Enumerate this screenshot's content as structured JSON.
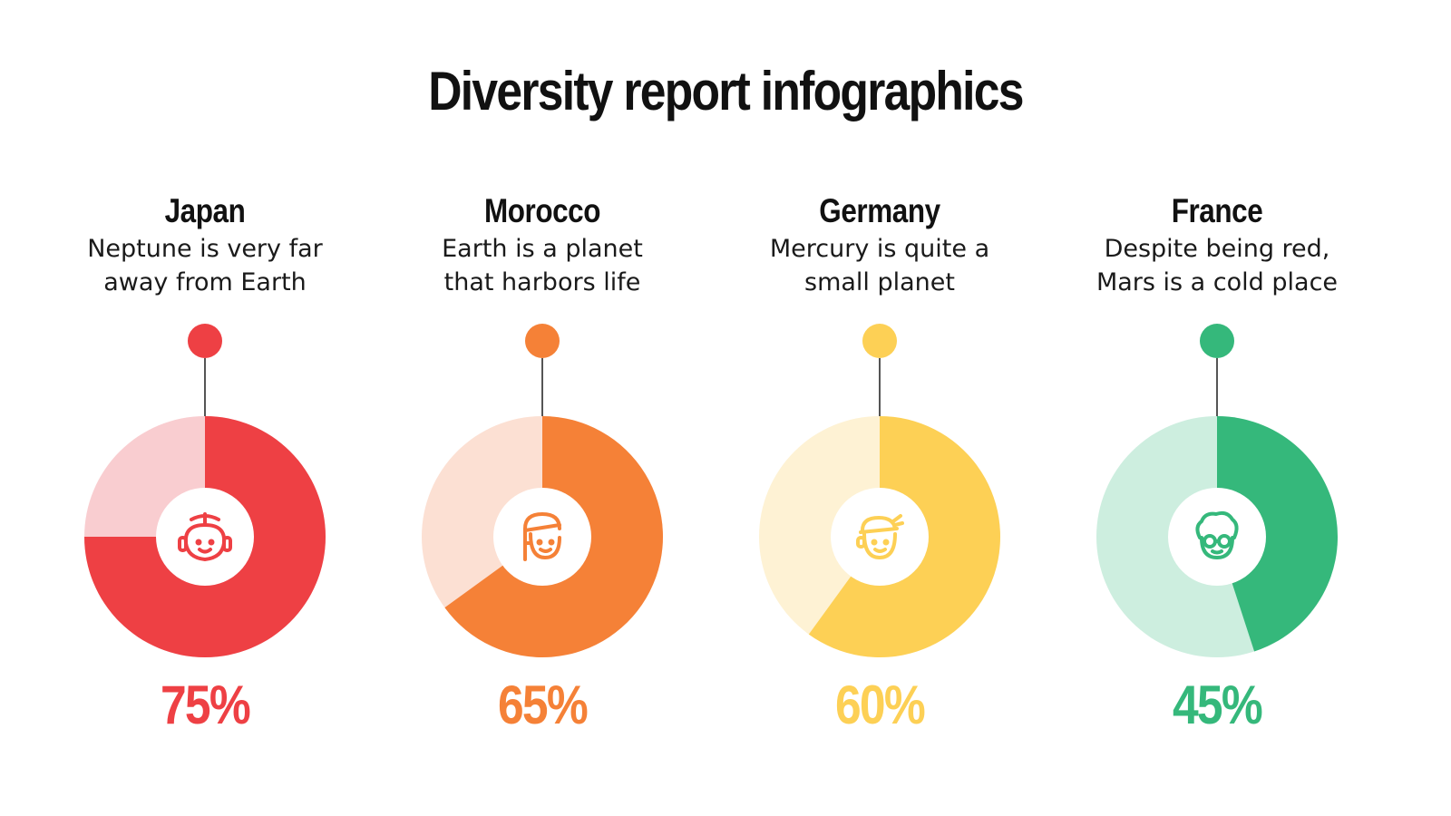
{
  "title": "Diversity report infographics",
  "items": [
    {
      "country": "Japan",
      "desc_line1": "Neptune is very far",
      "desc_line2": "away from Earth",
      "percent_label": "75%",
      "value": 75,
      "color": "#EE4044",
      "light_color": "#F9CDD0",
      "icon": "geisha-icon"
    },
    {
      "country": "Morocco",
      "desc_line1": "Earth is a planet",
      "desc_line2": "that harbors life",
      "percent_label": "65%",
      "value": 65,
      "color": "#F58137",
      "light_color": "#FCE0D3",
      "icon": "headscarf-person-icon"
    },
    {
      "country": "Germany",
      "desc_line1": "Mercury is quite a",
      "desc_line2": "small planet",
      "percent_label": "60%",
      "value": 60,
      "color": "#FDD055",
      "light_color": "#FEF2D4",
      "icon": "bandana-person-icon"
    },
    {
      "country": "France",
      "desc_line1": "Despite being red,",
      "desc_line2": "Mars is a cold place",
      "percent_label": "45%",
      "value": 45,
      "color": "#35B87B",
      "light_color": "#CDEEDF",
      "icon": "glasses-person-icon"
    }
  ],
  "chart_data": {
    "type": "pie",
    "categories": [
      "Japan",
      "Morocco",
      "Germany",
      "France"
    ],
    "values": [
      75,
      65,
      60,
      45
    ],
    "title": "Diversity report infographics"
  }
}
